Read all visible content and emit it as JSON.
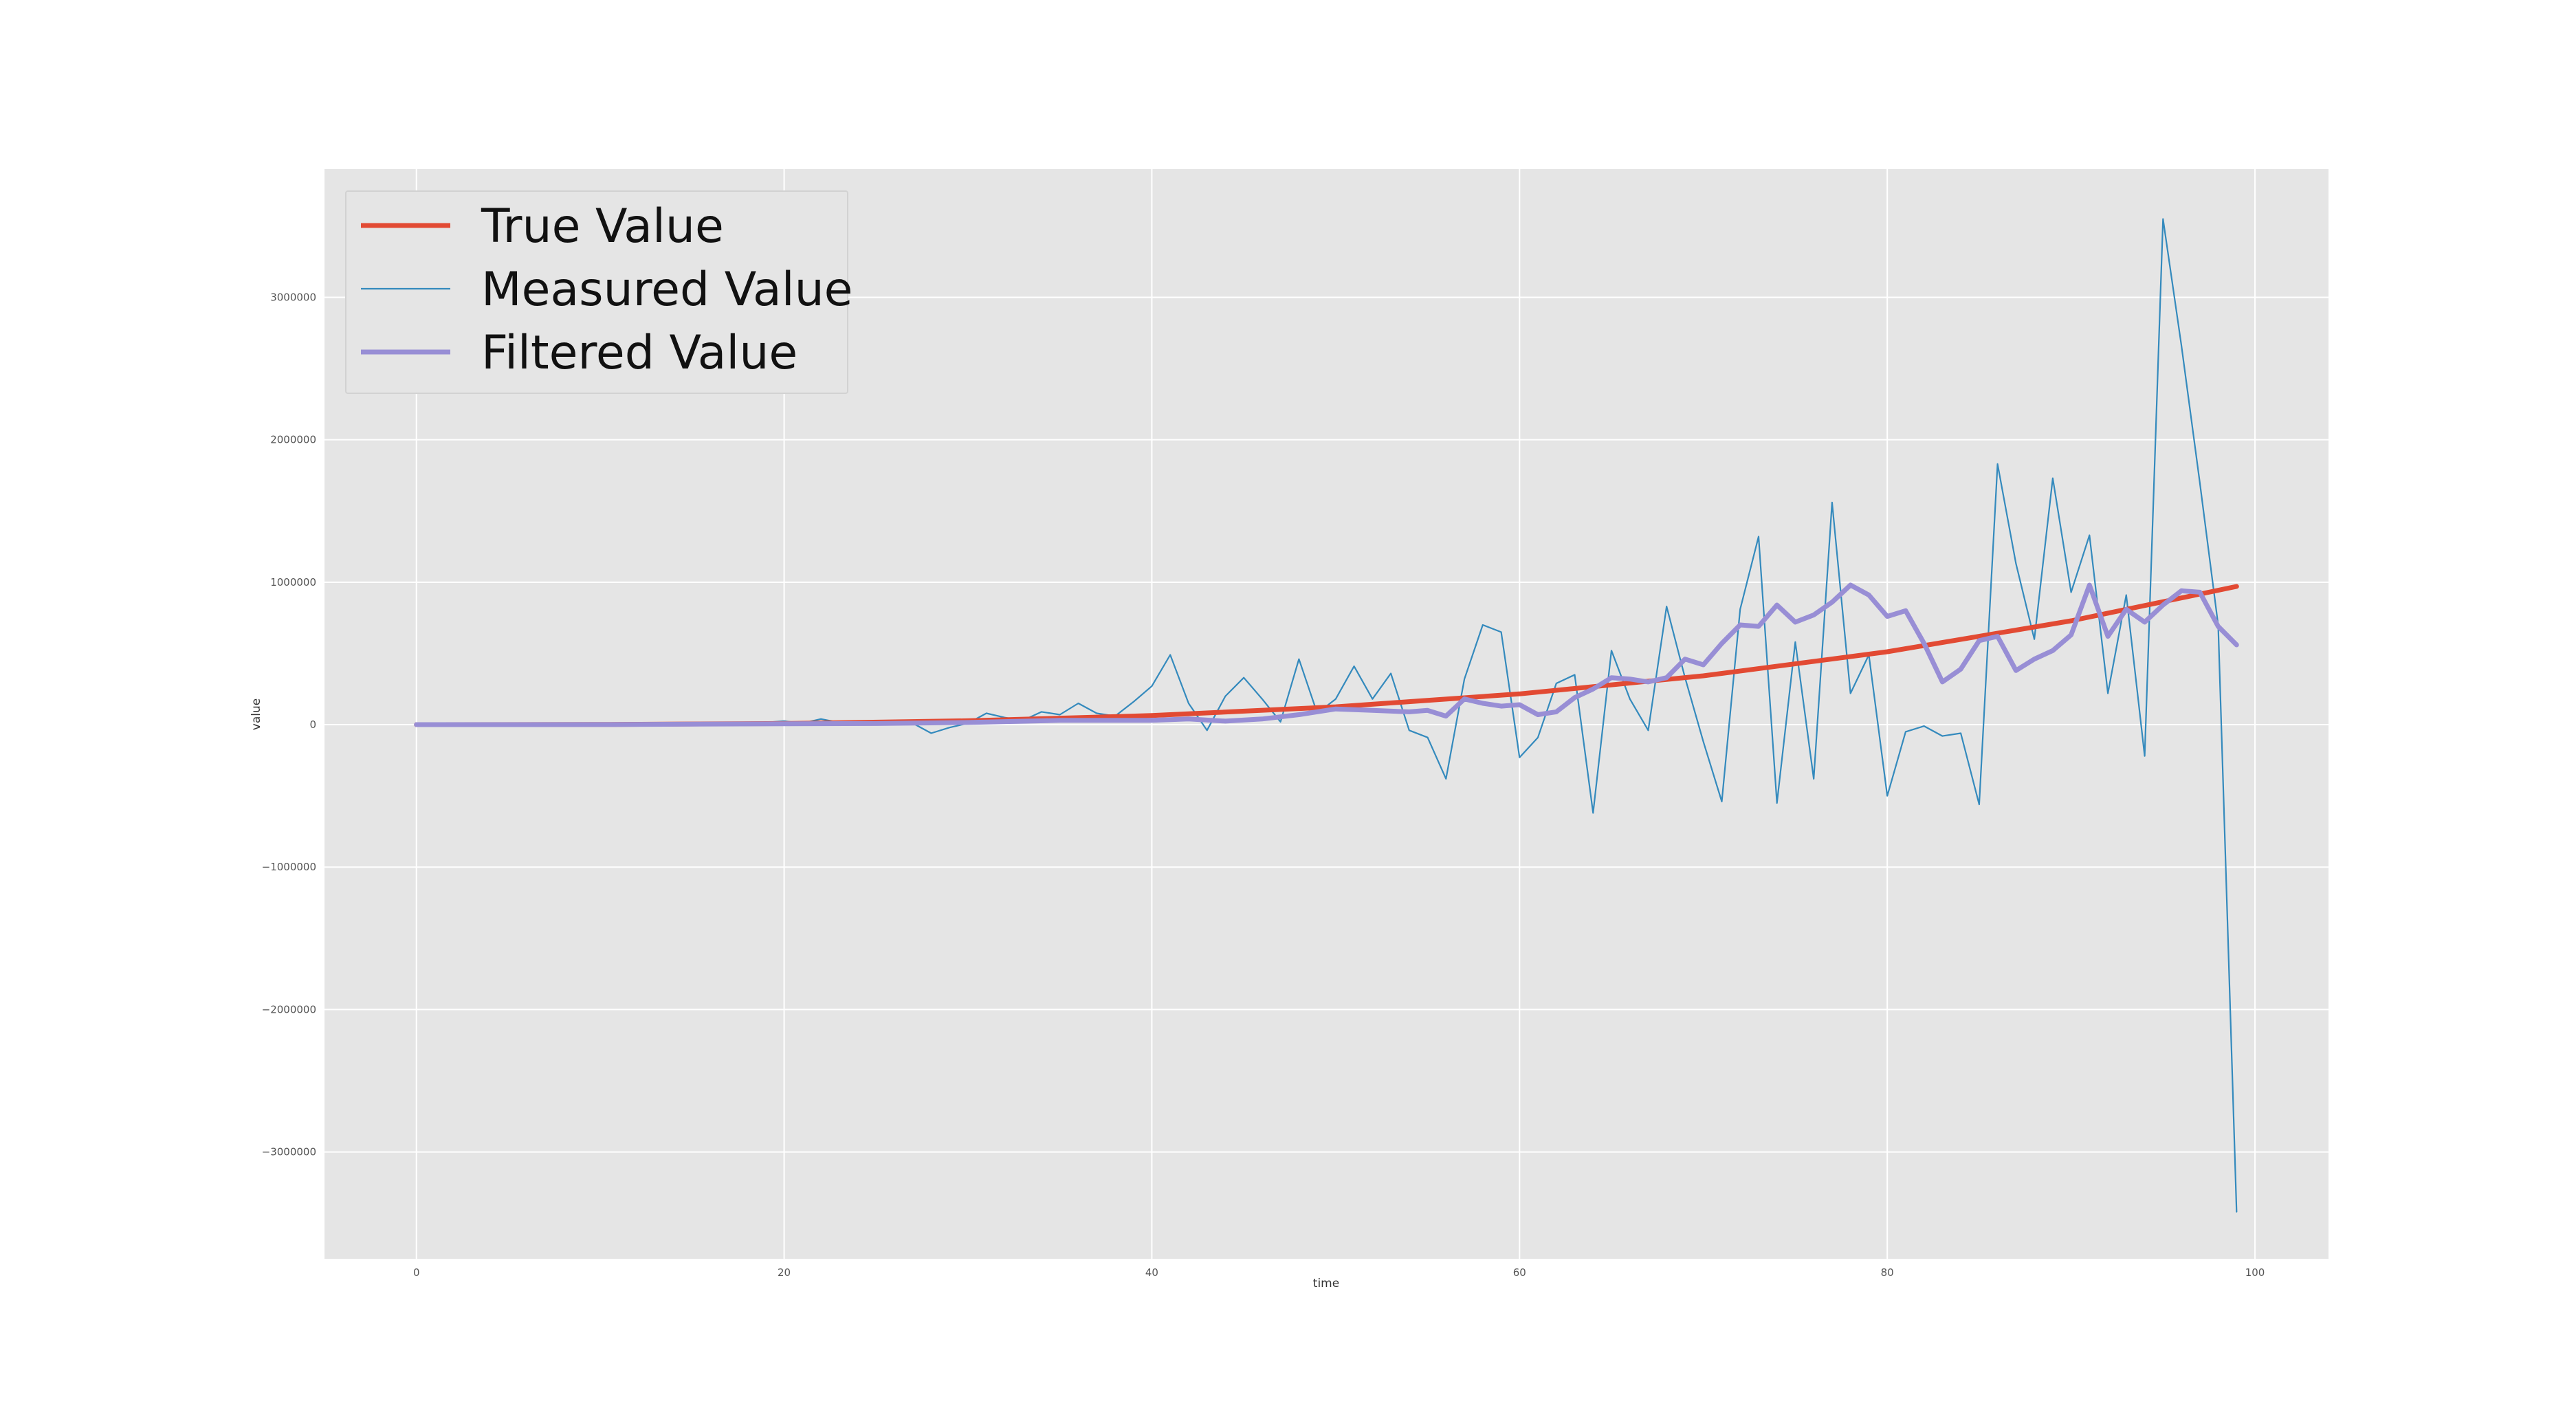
{
  "chart_data": {
    "type": "line",
    "title": "",
    "xlabel": "time",
    "ylabel": "value",
    "xlim": [
      -5,
      104
    ],
    "ylim": [
      -3750000,
      3900000
    ],
    "xticks": [
      0,
      20,
      40,
      60,
      80,
      100
    ],
    "yticks": [
      -3000000,
      -2000000,
      -1000000,
      0,
      1000000,
      2000000,
      3000000
    ],
    "ytick_labels": [
      "−3000000",
      "−2000000",
      "−1000000",
      "0",
      "1000000",
      "2000000",
      "3000000"
    ],
    "grid": true,
    "legend_position": "top-left",
    "series": [
      {
        "name": "True Value",
        "color": "#e24a33",
        "style": "thick",
        "points": [
          [
            0,
            0
          ],
          [
            10,
            1000
          ],
          [
            20,
            8000
          ],
          [
            30,
            27000
          ],
          [
            40,
            64000
          ],
          [
            50,
            125000
          ],
          [
            60,
            216000
          ],
          [
            70,
            343000
          ],
          [
            80,
            512000
          ],
          [
            90,
            729000
          ],
          [
            99,
            970299
          ]
        ]
      },
      {
        "name": "Measured Value",
        "color": "#348abd",
        "style": "thin",
        "points": [
          [
            0,
            0
          ],
          [
            5,
            200
          ],
          [
            10,
            1000
          ],
          [
            15,
            3000
          ],
          [
            18,
            6000
          ],
          [
            20,
            25000
          ],
          [
            21,
            10000
          ],
          [
            22,
            40000
          ],
          [
            23,
            15000
          ],
          [
            24,
            20000
          ],
          [
            25,
            10000
          ],
          [
            26,
            20000
          ],
          [
            27,
            10000
          ],
          [
            28,
            -60000
          ],
          [
            29,
            -20000
          ],
          [
            30,
            10000
          ],
          [
            31,
            80000
          ],
          [
            32,
            50000
          ],
          [
            33,
            30000
          ],
          [
            34,
            90000
          ],
          [
            35,
            70000
          ],
          [
            36,
            150000
          ],
          [
            37,
            80000
          ],
          [
            38,
            60000
          ],
          [
            39,
            160000
          ],
          [
            40,
            270000
          ],
          [
            41,
            490000
          ],
          [
            42,
            150000
          ],
          [
            43,
            -40000
          ],
          [
            44,
            200000
          ],
          [
            45,
            330000
          ],
          [
            46,
            180000
          ],
          [
            47,
            20000
          ],
          [
            48,
            460000
          ],
          [
            49,
            80000
          ],
          [
            50,
            180000
          ],
          [
            51,
            410000
          ],
          [
            52,
            180000
          ],
          [
            53,
            360000
          ],
          [
            54,
            -40000
          ],
          [
            55,
            -90000
          ],
          [
            56,
            -380000
          ],
          [
            57,
            320000
          ],
          [
            58,
            700000
          ],
          [
            59,
            650000
          ],
          [
            60,
            -230000
          ],
          [
            61,
            -90000
          ],
          [
            62,
            290000
          ],
          [
            63,
            350000
          ],
          [
            64,
            -620000
          ],
          [
            65,
            520000
          ],
          [
            66,
            180000
          ],
          [
            67,
            -40000
          ],
          [
            68,
            830000
          ],
          [
            69,
            330000
          ],
          [
            70,
            -120000
          ],
          [
            71,
            -540000
          ],
          [
            72,
            810000
          ],
          [
            73,
            1320000
          ],
          [
            74,
            -550000
          ],
          [
            75,
            580000
          ],
          [
            76,
            -380000
          ],
          [
            77,
            1560000
          ],
          [
            78,
            220000
          ],
          [
            79,
            490000
          ],
          [
            80,
            -500000
          ],
          [
            81,
            -50000
          ],
          [
            82,
            -10000
          ],
          [
            83,
            -80000
          ],
          [
            84,
            -60000
          ],
          [
            85,
            -560000
          ],
          [
            86,
            1830000
          ],
          [
            87,
            1130000
          ],
          [
            88,
            600000
          ],
          [
            89,
            1730000
          ],
          [
            90,
            930000
          ],
          [
            91,
            1330000
          ],
          [
            92,
            220000
          ],
          [
            93,
            910000
          ],
          [
            94,
            -220000
          ],
          [
            95,
            3550000
          ],
          [
            96,
            2660000
          ],
          [
            97,
            1700000
          ],
          [
            98,
            700000
          ],
          [
            99,
            -3420000
          ]
        ]
      },
      {
        "name": "Filtered Value",
        "color": "#988ed5",
        "style": "thick",
        "points": [
          [
            0,
            0
          ],
          [
            10,
            800
          ],
          [
            20,
            6000
          ],
          [
            25,
            8000
          ],
          [
            30,
            15000
          ],
          [
            35,
            30000
          ],
          [
            40,
            30000
          ],
          [
            42,
            40000
          ],
          [
            44,
            25000
          ],
          [
            46,
            40000
          ],
          [
            48,
            70000
          ],
          [
            50,
            110000
          ],
          [
            52,
            100000
          ],
          [
            54,
            90000
          ],
          [
            55,
            100000
          ],
          [
            56,
            60000
          ],
          [
            57,
            180000
          ],
          [
            58,
            150000
          ],
          [
            59,
            130000
          ],
          [
            60,
            140000
          ],
          [
            61,
            70000
          ],
          [
            62,
            90000
          ],
          [
            63,
            190000
          ],
          [
            64,
            250000
          ],
          [
            65,
            330000
          ],
          [
            66,
            320000
          ],
          [
            67,
            300000
          ],
          [
            68,
            330000
          ],
          [
            69,
            460000
          ],
          [
            70,
            420000
          ],
          [
            71,
            570000
          ],
          [
            72,
            700000
          ],
          [
            73,
            690000
          ],
          [
            74,
            840000
          ],
          [
            75,
            720000
          ],
          [
            76,
            770000
          ],
          [
            77,
            860000
          ],
          [
            78,
            980000
          ],
          [
            79,
            910000
          ],
          [
            80,
            760000
          ],
          [
            81,
            800000
          ],
          [
            82,
            570000
          ],
          [
            83,
            300000
          ],
          [
            84,
            390000
          ],
          [
            85,
            590000
          ],
          [
            86,
            620000
          ],
          [
            87,
            380000
          ],
          [
            88,
            460000
          ],
          [
            89,
            520000
          ],
          [
            90,
            630000
          ],
          [
            91,
            980000
          ],
          [
            92,
            620000
          ],
          [
            93,
            810000
          ],
          [
            94,
            720000
          ],
          [
            95,
            840000
          ],
          [
            96,
            940000
          ],
          [
            97,
            930000
          ],
          [
            98,
            690000
          ],
          [
            99,
            560000
          ]
        ]
      }
    ]
  }
}
